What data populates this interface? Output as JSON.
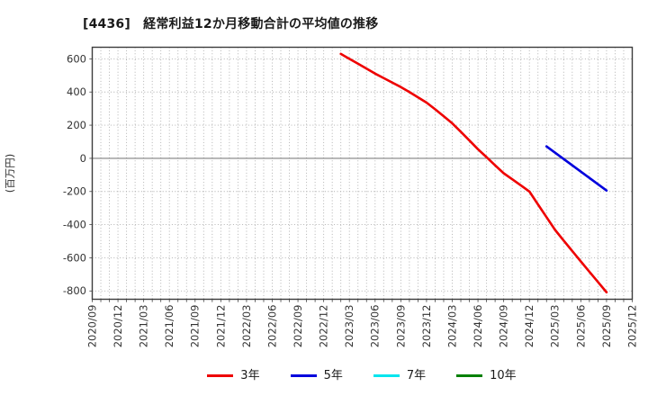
{
  "title": "[4436]　経常利益12か月移動合計の平均値の推移",
  "ylabel": "(百万円)",
  "legend": [
    {
      "label": "3年",
      "color": "#ee0000"
    },
    {
      "label": "5年",
      "color": "#0000dd"
    },
    {
      "label": "7年",
      "color": "#00e5ee"
    },
    {
      "label": "10年",
      "color": "#008000"
    }
  ],
  "colors": {
    "grid": "#ababab",
    "zero_line": "#808080",
    "border": "#3c3c3c",
    "tick_text": "#333333",
    "background": "#ffffff"
  },
  "chart_data": {
    "type": "line",
    "title": "[4436]　経常利益12か月移動合計の平均値の推移",
    "xlabel": "",
    "ylabel": "(百万円)",
    "x_start": "2020/09",
    "x_end": "2025/12",
    "x_unit": "month",
    "x_tick_interval_months": 3,
    "x_ticks": [
      "2020/09",
      "2020/12",
      "2021/03",
      "2021/06",
      "2021/09",
      "2021/12",
      "2022/03",
      "2022/06",
      "2022/09",
      "2022/12",
      "2023/03",
      "2023/06",
      "2023/09",
      "2023/12",
      "2024/03",
      "2024/06",
      "2024/09",
      "2024/12",
      "2025/03",
      "2025/06",
      "2025/09",
      "2025/12"
    ],
    "y_ticks": [
      600,
      400,
      200,
      0,
      -200,
      -400,
      -600,
      -800
    ],
    "ylim": [
      -850,
      670
    ],
    "grid": "dotted; vertical line every month, horizontal every 200",
    "legend_position": "bottom-center",
    "series": [
      {
        "name": "3年",
        "color": "#ee0000",
        "start": "2023/02",
        "values": [
          630,
          600,
          571,
          541,
          511,
          484,
          457,
          430,
          400,
          368,
          336,
          296,
          254,
          211,
          160,
          108,
          55,
          7,
          -42,
          -90,
          -126,
          -163,
          -200,
          -278,
          -355,
          -432,
          -496,
          -559,
          -622,
          -684,
          -746,
          -808
        ]
      },
      {
        "name": "5年",
        "color": "#0000dd",
        "start": "2025/02",
        "values": [
          72,
          34,
          -4,
          -42,
          -80,
          -118,
          -156,
          -194
        ]
      },
      {
        "name": "7年",
        "color": "#00e5ee",
        "start": null,
        "values": []
      },
      {
        "name": "10年",
        "color": "#008000",
        "start": null,
        "values": []
      }
    ]
  }
}
